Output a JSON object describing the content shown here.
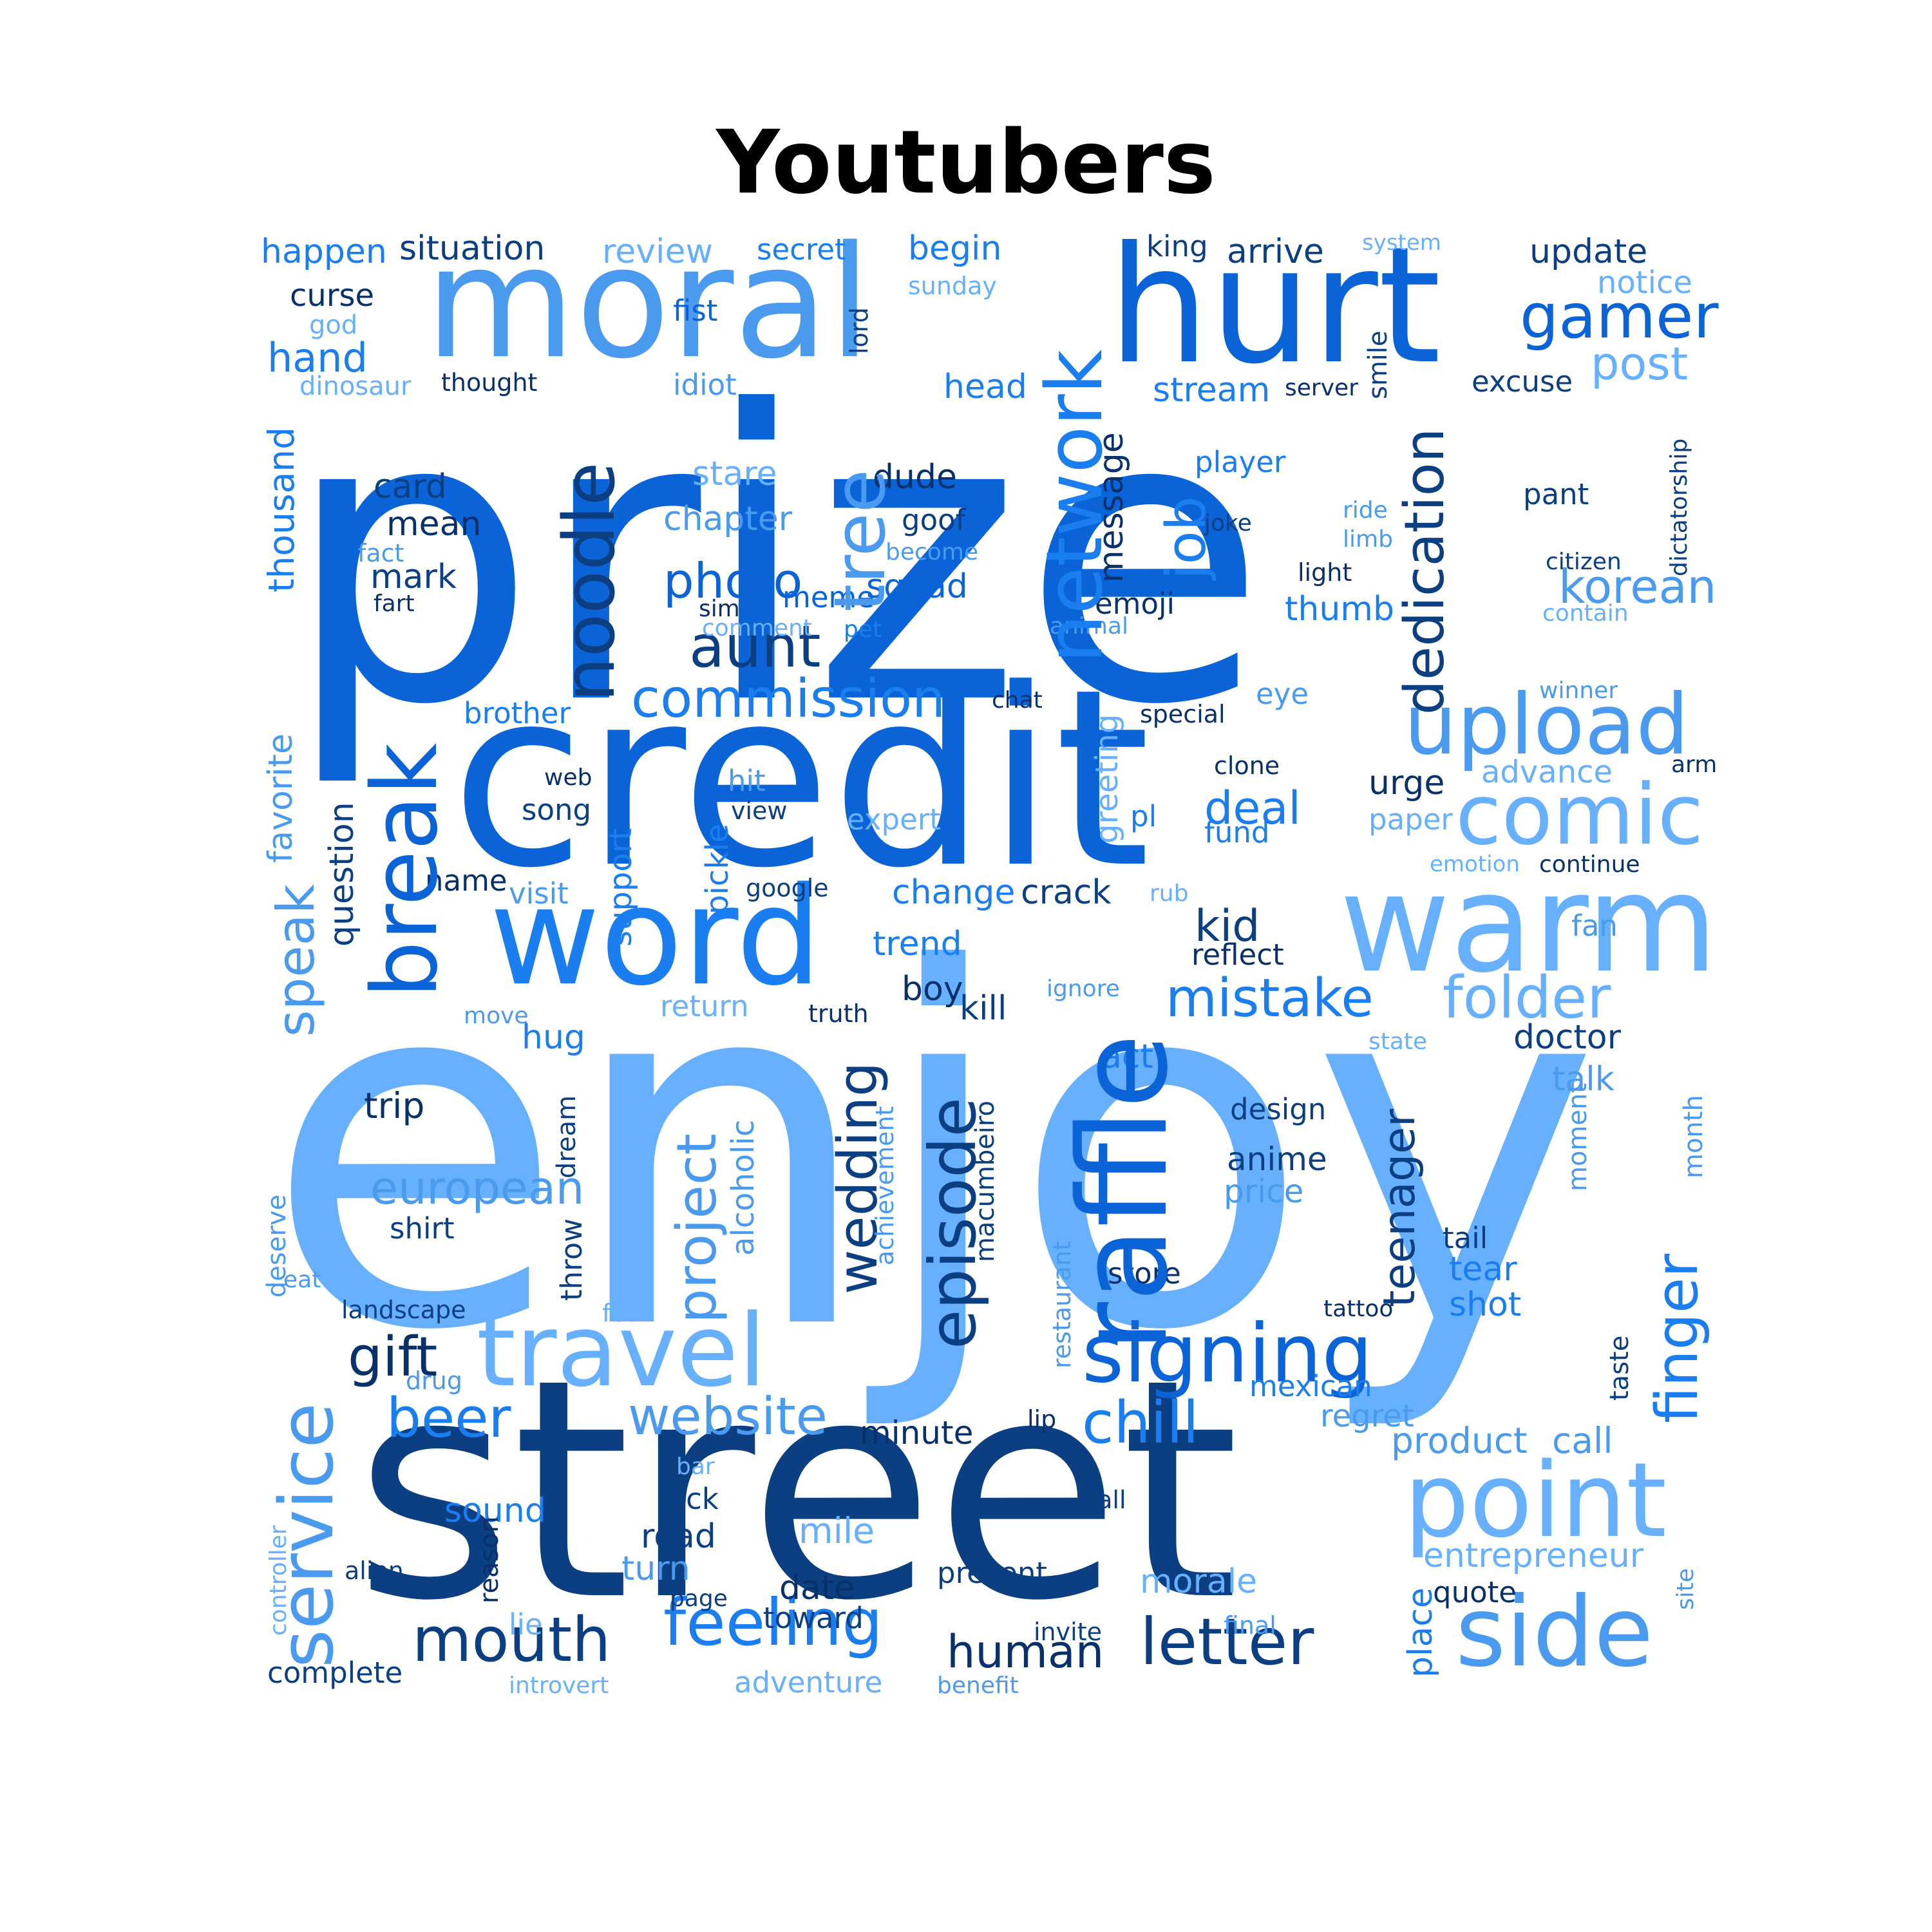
{
  "title": "Youtubers",
  "colors": {
    "c1": "#0a64d8",
    "c2": "#1a7ef0",
    "c3": "#4a9af0",
    "c4": "#66b0ff",
    "c5": "#0b3f82",
    "c6": "#08306b"
  },
  "words": {
    "enjoy": "enjoy",
    "prize": "prize",
    "street": "street",
    "credit": "credit",
    "hurt": "hurt",
    "moral": "moral",
    "word": "word",
    "warm": "warm",
    "raffle": "raffle",
    "upload": "upload",
    "comic": "comic",
    "point": "point",
    "side": "side",
    "travel": "travel",
    "signing": "signing",
    "break": "break",
    "network": "network",
    "tree": "tree",
    "noodle": "noodle",
    "dedication": "dedication",
    "job": "job",
    "gamer": "gamer",
    "post": "post",
    "aunt": "aunt",
    "commission": "commission",
    "photo": "photo",
    "korean": "korean",
    "folder": "folder",
    "mistake": "mistake",
    "service": "service",
    "speak": "speak",
    "feeling": "feeling",
    "mouth": "mouth",
    "letter": "letter",
    "website": "website",
    "chill": "chill",
    "beer": "beer",
    "gift": "gift",
    "human": "human",
    "episode": "episode",
    "wedding": "wedding",
    "project": "project",
    "finger": "finger",
    "teenager": "teenager",
    "european": "european",
    "product": "product",
    "call": "call",
    "entrepreneur": "entrepreneur",
    "happen": "happen",
    "situation": "situation",
    "review": "review",
    "secret": "secret",
    "begin": "begin",
    "king": "king",
    "arrive": "arrive",
    "system": "system",
    "update": "update",
    "notice": "notice",
    "curse": "curse",
    "fist": "fist",
    "sunday": "sunday",
    "god": "god",
    "hand": "hand",
    "dinosaur": "dinosaur",
    "thought": "thought",
    "idiot": "idiot",
    "head": "head",
    "stream": "stream",
    "server": "server",
    "excuse": "excuse",
    "card": "card",
    "mean": "mean",
    "mark": "mark",
    "fact": "fact",
    "fart": "fart",
    "stare": "stare",
    "chapter": "chapter",
    "dude": "dude",
    "goof": "goof",
    "become": "become",
    "player": "player",
    "joke": "joke",
    "ride": "ride",
    "limb": "limb",
    "pant": "pant",
    "citizen": "citizen",
    "contain": "contain",
    "light": "light",
    "thumb": "thumb",
    "emoji": "emoji",
    "animal": "animal",
    "squad": "squad",
    "meme": "meme",
    "sim": "sim",
    "comment": "comment",
    "pet": "pet",
    "message": "message",
    "smile": "smile",
    "lord": "lord",
    "dictatorship": "dictatorship",
    "thousand": "thousand",
    "brother": "brother",
    "chat": "chat",
    "special": "special",
    "eye": "eye",
    "winner": "winner",
    "clone": "clone",
    "arm": "arm",
    "advance": "advance",
    "urge": "urge",
    "deal": "deal",
    "fund": "fund",
    "pl": "pl",
    "paper": "paper",
    "emotion": "emotion",
    "continue": "continue",
    "web": "web",
    "song": "song",
    "hit": "hit",
    "view": "view",
    "expert": "expert",
    "greeting": "greeting",
    "name": "name",
    "visit": "visit",
    "google": "google",
    "change": "change",
    "crack": "crack",
    "rub": "rub",
    "kid": "kid",
    "reflect": "reflect",
    "fan": "fan",
    "trend": "trend",
    "boy": "boy",
    "kill": "kill",
    "ignore": "ignore",
    "return": "return",
    "truth": "truth",
    "move": "move",
    "hug": "hug",
    "act": "act",
    "doctor": "doctor",
    "state": "state",
    "talk": "talk",
    "trip": "trip",
    "design": "design",
    "anime": "anime",
    "price": "price",
    "shirt": "shirt",
    "tail": "tail",
    "tear": "tear",
    "shot": "shot",
    "store": "store",
    "tattoo": "tattoo",
    "landscape": "landscape",
    "fear": "fear",
    "eat": "eat",
    "drug": "drug",
    "mexican": "mexican",
    "regret": "regret",
    "minute": "minute",
    "lip": "lip",
    "bar": "bar",
    "lack": "lack",
    "sound": "sound",
    "road": "road",
    "mile": "mile",
    "ball": "ball",
    "turn": "turn",
    "date": "date",
    "present": "present",
    "morale": "morale",
    "toward": "toward",
    "page": "page",
    "quote": "quote",
    "alien": "alien",
    "lie": "lie",
    "invite": "invite",
    "final": "final",
    "complete": "complete",
    "introvert": "introvert",
    "adventure": "adventure",
    "benefit": "benefit",
    "question": "question",
    "support": "support",
    "pickle": "pickle",
    "favorite": "favorite",
    "dream": "dream",
    "throw": "throw",
    "alcoholic": "alcoholic",
    "achievement": "achievement",
    "macumbeiro": "macumbeiro",
    "restaurant": "restaurant",
    "deserve": "deserve",
    "moment": "moment",
    "month": "month",
    "taste": "taste",
    "reason": "reason",
    "controller": "controller",
    "place": "place",
    "site": "site"
  }
}
